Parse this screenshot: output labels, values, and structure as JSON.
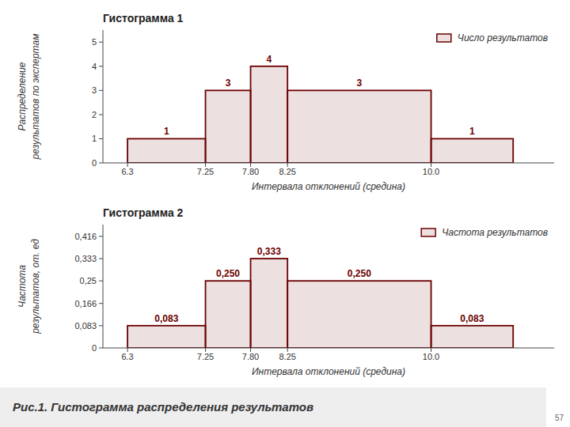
{
  "chart_data": [
    {
      "type": "histogram",
      "title": "Гистограмма 1",
      "x_label": "Интервала отклонений (средина)",
      "y_label": [
        "Распределение",
        "результатов по экспертам"
      ],
      "bins": [
        6.3,
        7.25,
        7.8,
        8.25,
        10.0,
        11.0
      ],
      "series": [
        {
          "name": "Число результатов",
          "color": "#6B0000",
          "values": [
            1,
            3,
            4,
            3,
            1
          ]
        }
      ],
      "xlim": [
        6.0,
        11.5
      ],
      "xticks": [
        6.3,
        7.25,
        {
          "value": 7.8,
          "label": "7.80"
        },
        8.25,
        {
          "value": 10.0,
          "label": "10.0"
        }
      ],
      "ylim": [
        0,
        5.5
      ],
      "yticks": [
        0,
        1,
        2,
        3,
        4,
        5
      ],
      "data_labels": true,
      "legend": "upper right"
    },
    {
      "type": "histogram",
      "title": "Гистограмма 2",
      "x_label": "Интервала отклонений (средина)",
      "y_label": [
        "Частота",
        "результатов, от. ед"
      ],
      "bins": [
        6.3,
        7.25,
        7.8,
        8.25,
        10.0,
        11.0
      ],
      "series": [
        {
          "name": "Частота результатов",
          "color": "#6B0000",
          "values": [
            0.083,
            0.25,
            0.333,
            0.25,
            0.083
          ],
          "value_labels": [
            "0,083",
            "0,250",
            "0,333",
            "0,250",
            "0,083"
          ]
        }
      ],
      "xlim": [
        6.0,
        11.5
      ],
      "xticks": [
        6.3,
        7.25,
        {
          "value": 7.8,
          "label": "7.80"
        },
        8.25,
        {
          "value": 10.0,
          "label": "10.0"
        }
      ],
      "ylim": [
        0,
        0.46
      ],
      "yticks": [
        0,
        {
          "value": 0.083,
          "label": "0,083"
        },
        {
          "value": 0.166,
          "label": "0,166"
        },
        {
          "value": 0.25,
          "label": "0,25"
        },
        {
          "value": 0.333,
          "label": "0,333"
        },
        {
          "value": 0.416,
          "label": "0,416"
        }
      ],
      "data_labels": true,
      "legend": "upper right",
      "annotations": [
        "Рис.1. Гистограмма распределения результатов",
        "57"
      ]
    }
  ]
}
